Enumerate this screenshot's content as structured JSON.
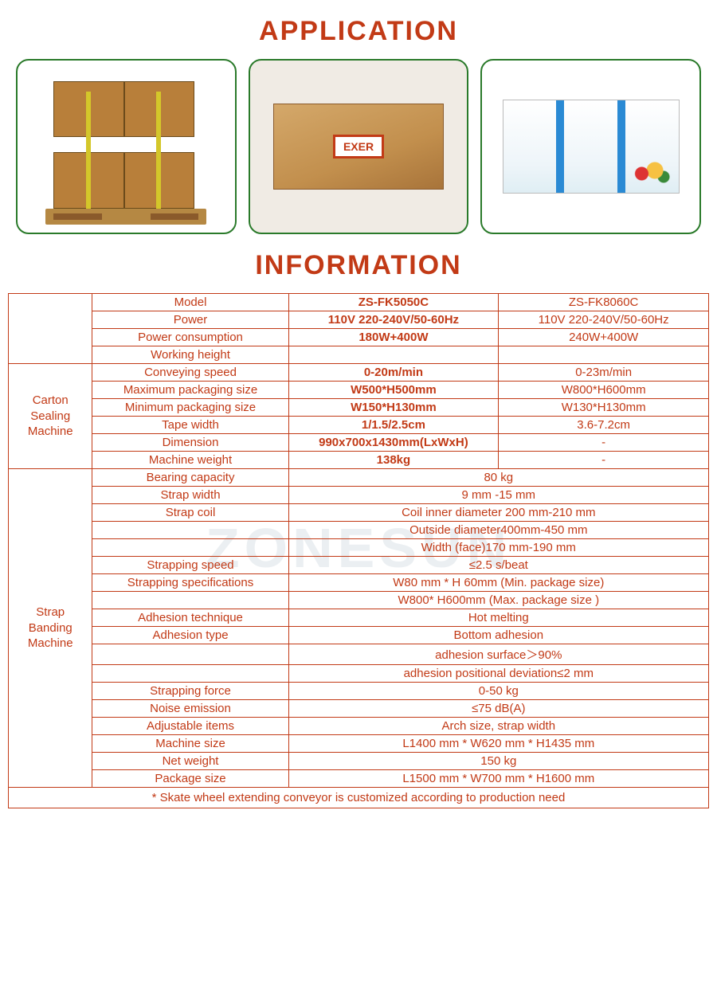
{
  "titles": {
    "application": "APPLICATION",
    "information": "INFORMATION"
  },
  "watermark": "ZONESUN",
  "table": {
    "side1": "Carton\nSealing\nMachine",
    "side2": "Strap\nBanding\nMachine",
    "rows_top": [
      {
        "label": "Model",
        "c1": "ZS-FK5050C",
        "c2": "ZS-FK8060C",
        "bold": true
      },
      {
        "label": "Power",
        "c1": "110V 220-240V/50-60Hz",
        "c2": "110V 220-240V/50-60Hz",
        "bold": true
      },
      {
        "label": "Power consumption",
        "c1": "180W+400W",
        "c2": "240W+400W",
        "bold": true
      },
      {
        "label": "Working height",
        "c1": "",
        "c2": "",
        "bold": false
      }
    ],
    "rows_carton": [
      {
        "label": "Conveying speed",
        "c1": "0-20m/min",
        "c2": "0-23m/min"
      },
      {
        "label": "Maximum packaging size",
        "c1": "W500*H500mm",
        "c2": "W800*H600mm"
      },
      {
        "label": "Minimum packaging size",
        "c1": "W150*H130mm",
        "c2": "W130*H130mm"
      },
      {
        "label": "Tape width",
        "c1": "1/1.5/2.5cm",
        "c2": "3.6-7.2cm"
      },
      {
        "label": "Dimension",
        "c1": "990x700x1430mm(LxWxH)",
        "c2": "-"
      },
      {
        "label": "Machine weight",
        "c1": "138kg",
        "c2": "-"
      }
    ],
    "rows_strap": [
      {
        "label": "Bearing capacity",
        "val": "80 kg"
      },
      {
        "label": "Strap width",
        "val": "9 mm -15 mm"
      },
      {
        "label": "Strap coil",
        "val": "Coil inner diameter 200 mm-210 mm"
      },
      {
        "label": "",
        "val": "Outside diameter400mm-450 mm"
      },
      {
        "label": "",
        "val": "Width (face)170 mm-190 mm"
      },
      {
        "label": "Strapping speed",
        "val": "≤2.5 s/beat"
      },
      {
        "label": "Strapping specifications",
        "val": "W80 mm * H 60mm (Min. package size)"
      },
      {
        "label": "",
        "val": "W800* H600mm (Max. package size )"
      },
      {
        "label": "Adhesion technique",
        "val": "Hot melting"
      },
      {
        "label": "Adhesion type",
        "val": "Bottom adhesion"
      },
      {
        "label": "",
        "val": "adhesion surface＞90%"
      },
      {
        "label": "",
        "val": "adhesion positional deviation≤2 mm"
      },
      {
        "label": "Strapping force",
        "val": "0-50 kg"
      },
      {
        "label": "Noise emission",
        "val": "≤75 dB(A)"
      },
      {
        "label": "Adjustable items",
        "val": "Arch size, strap width"
      },
      {
        "label": "Machine size",
        "val": "L1400 mm * W620 mm * H1435 mm"
      },
      {
        "label": "Net weight",
        "val": "150 kg"
      },
      {
        "label": "Package size",
        "val": "L1500 mm * W700 mm * H1600 mm"
      }
    ],
    "footnote": "* Skate wheel extending conveyor is customized according to production need"
  },
  "colors": {
    "accent": "#c23a16",
    "card_border": "#2a7a2a",
    "background": "#ffffff"
  },
  "icons": {
    "exer_label": "EXER"
  }
}
